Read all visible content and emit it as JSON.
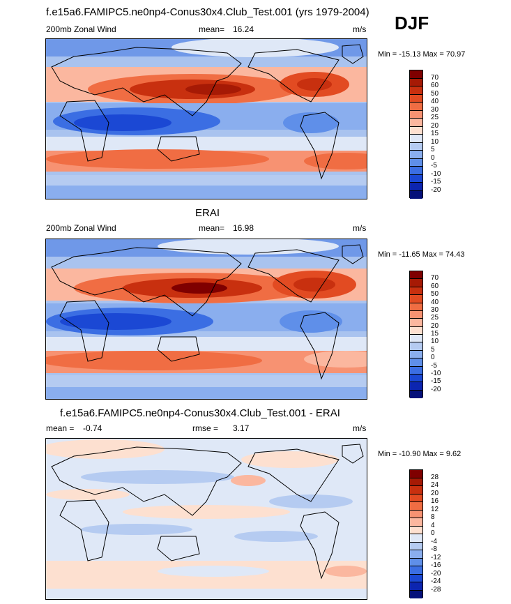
{
  "season": "DJF",
  "panel1": {
    "header": "f.e15a6.FAMIPC5.ne0np4-Conus30x4.Club_Test.001 (yrs 1979-2004)",
    "left_label": "200mb Zonal Wind",
    "stat_label": "mean=",
    "stat_value": "16.24",
    "units": "m/s",
    "minmax": "Min = -15.13 Max = 70.97"
  },
  "panel2": {
    "header": "ERAI",
    "left_label": "200mb Zonal Wind",
    "stat_label": "mean=",
    "stat_value": "16.98",
    "units": "m/s",
    "minmax": "Min = -11.65 Max = 74.43"
  },
  "panel3": {
    "header": "f.e15a6.FAMIPC5.ne0np4-Conus30x4.Club_Test.001 - ERAI",
    "left_label": "mean =",
    "left_value": "-0.74",
    "stat_label": "rmse =",
    "stat_value": "3.17",
    "units": "m/s",
    "minmax": "Min = -10.90 Max =   9.62"
  },
  "colorbar_abs": {
    "labels": [
      "70",
      "60",
      "50",
      "40",
      "30",
      "25",
      "20",
      "15",
      "10",
      "5",
      "0",
      "-5",
      "-10",
      "-15",
      "-20"
    ],
    "colors": [
      "#7f0000",
      "#a61a05",
      "#c8300f",
      "#e24b22",
      "#f06d43",
      "#f79272",
      "#fbb79f",
      "#fde0d0",
      "#dfe8f7",
      "#b5cbf1",
      "#8aaeee",
      "#5f8fe9",
      "#3b6ee3",
      "#1b48d4",
      "#0c25b0",
      "#05107a"
    ]
  },
  "colorbar_diff": {
    "labels": [
      "28",
      "24",
      "20",
      "16",
      "12",
      "8",
      "4",
      "0",
      "-4",
      "-8",
      "-12",
      "-16",
      "-20",
      "-24",
      "-28"
    ],
    "colors": [
      "#7f0000",
      "#a61a05",
      "#c8300f",
      "#e24b22",
      "#f06d43",
      "#f79272",
      "#fbb79f",
      "#fde0d0",
      "#dfe8f7",
      "#b5cbf1",
      "#8aaeee",
      "#5f8fe9",
      "#3b6ee3",
      "#1b48d4",
      "#0c25b0",
      "#05107a"
    ]
  }
}
